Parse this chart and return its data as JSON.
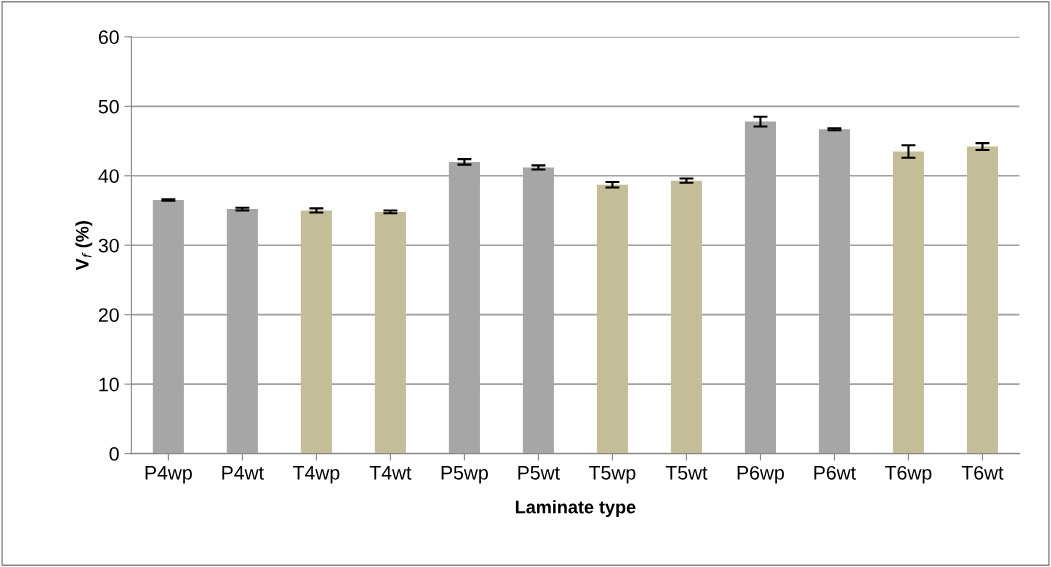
{
  "chart_data": {
    "type": "bar",
    "xlabel": "Laminate type",
    "ylabel": "V$_{f}$ (%)",
    "categories": [
      "P4wp",
      "P4wt",
      "T4wp",
      "T4wt",
      "P5wp",
      "P5wt",
      "T5wp",
      "T5wt",
      "P6wp",
      "P6wt",
      "T6wp",
      "T6wt"
    ],
    "values": [
      36.5,
      35.2,
      35.0,
      34.8,
      42.0,
      41.2,
      38.7,
      39.3,
      47.8,
      46.7,
      43.5,
      44.2
    ],
    "errors": [
      0.1,
      0.2,
      0.3,
      0.2,
      0.4,
      0.3,
      0.4,
      0.3,
      0.7,
      0.15,
      0.9,
      0.5
    ],
    "colors": [
      "#a6a6a6",
      "#a6a6a6",
      "#c4bd97",
      "#c4bd97",
      "#a6a6a6",
      "#a6a6a6",
      "#c4bd97",
      "#c4bd97",
      "#a6a6a6",
      "#a6a6a6",
      "#c4bd97",
      "#c4bd97"
    ],
    "ylim": [
      0,
      60
    ],
    "yticks": [
      0,
      10,
      20,
      30,
      40,
      50,
      60
    ],
    "grid": "y",
    "legend": false
  }
}
